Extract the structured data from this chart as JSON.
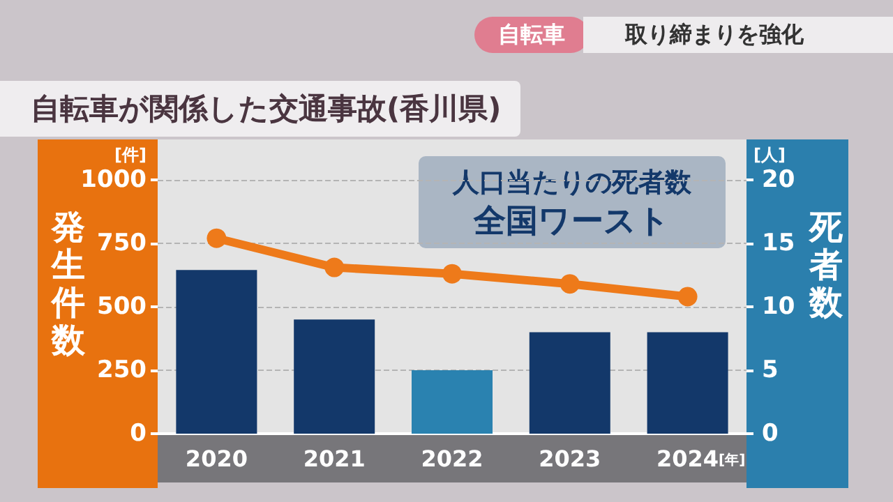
{
  "chart_data": {
    "type": "bar",
    "title": "自転車が関係した交通事故(香川県)",
    "categories": [
      "2020",
      "2021",
      "2022",
      "2023",
      "2024"
    ],
    "xlabel": "[年]",
    "ylabel": "発生件数",
    "y2label": "死者数",
    "series": [
      {
        "colors": [
          "#13386a",
          "#13386a",
          "#2a82b0",
          "#13386a",
          "#13386a"
        ],
        "values": [
          645,
          450,
          250,
          400,
          400
        ]
      },
      {
        "type": "line",
        "axis": "y2",
        "color": "#ee7a1a",
        "values": [
          15.4,
          13.1,
          12.6,
          11.8,
          10.8
        ]
      }
    ],
    "ylim": [
      0,
      1000
    ],
    "yticks": [
      0,
      250,
      500,
      750,
      1000
    ],
    "y2lim": [
      0,
      20
    ],
    "y2ticks": [
      0,
      5,
      10,
      15,
      20
    ],
    "grid": "y",
    "marker": "circle",
    "line_style": "solid",
    "annotations": [
      "自転車",
      "取り締まりを強化",
      "人口当たりの死者数",
      "全国ワースト",
      "[件]",
      "[人]"
    ]
  }
}
